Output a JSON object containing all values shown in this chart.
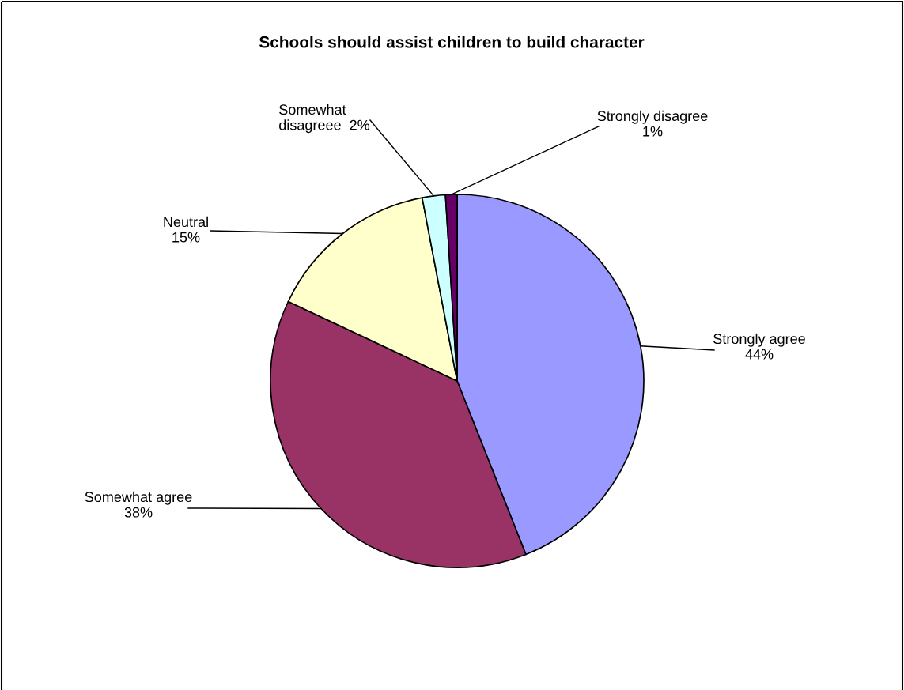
{
  "chart_data": {
    "type": "pie",
    "title": "Schools should assist children to build character",
    "categories": [
      "Strongly agree",
      "Somewhat agree",
      "Neutral",
      "Somewhat\ndisagreee",
      "Strongly disagree"
    ],
    "values": [
      44,
      38,
      15,
      2,
      1
    ],
    "value_labels": [
      "44%",
      "38%",
      "15%",
      "2%",
      "1%"
    ],
    "colors": [
      "#9999ff",
      "#993366",
      "#ffffcc",
      "#ccffff",
      "#660066"
    ],
    "legend": false
  }
}
